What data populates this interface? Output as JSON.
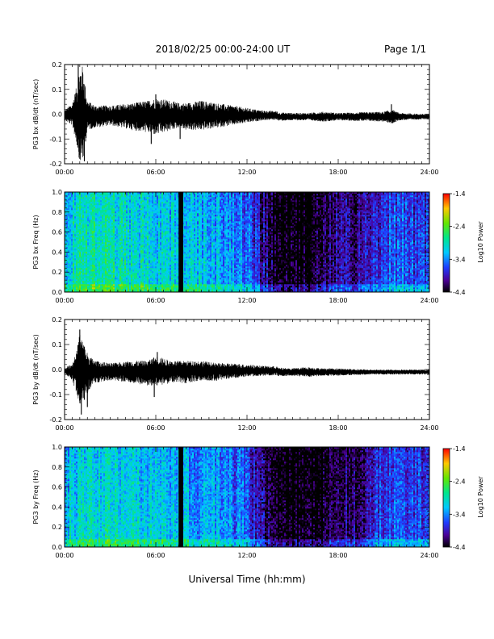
{
  "header": {
    "title": "2018/02/25  00:00-24:00 UT",
    "page": "Page 1/1"
  },
  "footer": {
    "xlabel": "Universal Time (hh:mm)"
  },
  "chart_data": [
    {
      "type": "line",
      "title": "",
      "ylabel": "PG3 bx dB/dt (nT/sec)",
      "xlabel": "",
      "x_ticks": [
        "00:00",
        "06:00",
        "12:00",
        "18:00",
        "24:00"
      ],
      "xlim": [
        0,
        24
      ],
      "ylim": [
        -0.2,
        0.2
      ],
      "y_ticks": [
        "0.2",
        "0.1",
        "0.0",
        "-0.1",
        "-0.2"
      ],
      "envelope": {
        "x_hours": [
          0,
          0.5,
          0.8,
          1.0,
          1.2,
          1.5,
          2.0,
          3.0,
          4.5,
          5.5,
          6.0,
          7.0,
          7.5,
          8.0,
          9.0,
          10.0,
          11.0,
          12.0,
          13.0,
          15.0,
          16.0,
          17.0,
          18.0,
          21.0,
          21.5,
          22.0,
          24.0
        ],
        "y_max": [
          0.02,
          0.05,
          0.12,
          0.2,
          0.2,
          0.06,
          0.04,
          0.04,
          0.05,
          0.06,
          0.07,
          0.06,
          0.05,
          0.05,
          0.06,
          0.05,
          0.04,
          0.03,
          0.02,
          0.015,
          0.015,
          0.02,
          0.015,
          0.02,
          0.03,
          0.015,
          0.01
        ],
        "y_min": [
          -0.02,
          -0.04,
          -0.12,
          -0.19,
          -0.19,
          -0.06,
          -0.05,
          -0.04,
          -0.06,
          -0.07,
          -0.08,
          -0.06,
          -0.05,
          -0.06,
          -0.06,
          -0.05,
          -0.04,
          -0.03,
          -0.02,
          -0.015,
          -0.015,
          -0.02,
          -0.015,
          -0.02,
          -0.03,
          -0.015,
          -0.01
        ]
      },
      "spikes": [
        {
          "x": 0.9,
          "y": 0.2
        },
        {
          "x": 1.0,
          "y": -0.18
        },
        {
          "x": 1.2,
          "y": 0.16
        },
        {
          "x": 1.3,
          "y": -0.19
        },
        {
          "x": 5.7,
          "y": -0.12
        },
        {
          "x": 6.0,
          "y": 0.08
        },
        {
          "x": 7.6,
          "y": -0.1
        },
        {
          "x": 21.5,
          "y": 0.04
        }
      ]
    },
    {
      "type": "heatmap",
      "title": "",
      "ylabel": "PG3 bx Freq (Hz)",
      "xlabel": "",
      "x_ticks": [
        "00:00",
        "06:00",
        "12:00",
        "18:00",
        "24:00"
      ],
      "xlim": [
        0,
        24
      ],
      "ylim": [
        0,
        1.0
      ],
      "y_ticks": [
        "1.0",
        "0.8",
        "0.6",
        "0.4",
        "0.2",
        "0.0"
      ],
      "colorbar": {
        "label": "Log10 Power",
        "min": -4.4,
        "max": -1.4,
        "ticks": [
          "-1.4",
          "-2.4",
          "-3.4",
          "-4.4"
        ]
      },
      "data_gap_hours": [
        7.5,
        7.8
      ],
      "quiet_band_hours": [
        13.0,
        17.0
      ],
      "column_log_power": {
        "x_hours": [
          0,
          2,
          4,
          6,
          8,
          10,
          12,
          13,
          14,
          15,
          16,
          17,
          18,
          19,
          20,
          21,
          22,
          23,
          24
        ],
        "level": [
          -3.0,
          -2.8,
          -2.9,
          -3.0,
          -3.1,
          -3.2,
          -3.4,
          -3.9,
          -4.3,
          -4.4,
          -4.4,
          -4.2,
          -3.9,
          -4.0,
          -3.8,
          -3.6,
          -3.5,
          -3.6,
          -3.7
        ]
      }
    },
    {
      "type": "line",
      "title": "",
      "ylabel": "PG3 by dB/dt (nT/sec)",
      "xlabel": "",
      "x_ticks": [
        "00:00",
        "06:00",
        "12:00",
        "18:00",
        "24:00"
      ],
      "xlim": [
        0,
        24
      ],
      "ylim": [
        -0.2,
        0.2
      ],
      "y_ticks": [
        "0.2",
        "0.1",
        "0.0",
        "-0.1",
        "-0.2"
      ],
      "envelope": {
        "x_hours": [
          0,
          0.5,
          0.8,
          1.0,
          1.3,
          1.6,
          2.0,
          3.0,
          4.5,
          5.5,
          6.0,
          7.0,
          8.0,
          9.0,
          10.0,
          11.0,
          12.0,
          13.0,
          15.0,
          16.0,
          17.0,
          18.0,
          20.0,
          22.0,
          24.0
        ],
        "y_max": [
          0.01,
          0.03,
          0.08,
          0.16,
          0.1,
          0.06,
          0.04,
          0.03,
          0.04,
          0.04,
          0.06,
          0.04,
          0.04,
          0.04,
          0.03,
          0.03,
          0.025,
          0.02,
          0.015,
          0.02,
          0.015,
          0.015,
          0.01,
          0.01,
          0.01
        ],
        "y_min": [
          -0.01,
          -0.04,
          -0.09,
          -0.14,
          -0.12,
          -0.08,
          -0.05,
          -0.04,
          -0.05,
          -0.06,
          -0.06,
          -0.05,
          -0.05,
          -0.04,
          -0.04,
          -0.03,
          -0.025,
          -0.02,
          -0.015,
          -0.02,
          -0.015,
          -0.015,
          -0.01,
          -0.01,
          -0.01
        ]
      },
      "spikes": [
        {
          "x": 1.0,
          "y": 0.16
        },
        {
          "x": 1.1,
          "y": -0.18
        },
        {
          "x": 1.3,
          "y": 0.09
        },
        {
          "x": 1.5,
          "y": -0.15
        },
        {
          "x": 5.9,
          "y": -0.11
        },
        {
          "x": 6.1,
          "y": 0.07
        }
      ]
    },
    {
      "type": "heatmap",
      "title": "",
      "ylabel": "PG3 by Freq (Hz)",
      "xlabel": "",
      "x_ticks": [
        "00:00",
        "06:00",
        "12:00",
        "18:00",
        "24:00"
      ],
      "xlim": [
        0,
        24
      ],
      "ylim": [
        0,
        1.0
      ],
      "y_ticks": [
        "1.0",
        "0.8",
        "0.6",
        "0.4",
        "0.2",
        "0.0"
      ],
      "colorbar": {
        "label": "Log10 Power",
        "min": -4.4,
        "max": -1.4,
        "ticks": [
          "-1.4",
          "-2.4",
          "-3.4",
          "-4.4"
        ]
      },
      "data_gap_hours": [
        7.5,
        7.8
      ],
      "quiet_band_hours": [
        13.0,
        17.5
      ],
      "column_log_power": {
        "x_hours": [
          0,
          2,
          4,
          6,
          8,
          10,
          12,
          13,
          14,
          15,
          16,
          17,
          18,
          19,
          20,
          21,
          22,
          23,
          24
        ],
        "level": [
          -3.1,
          -2.9,
          -3.0,
          -3.1,
          -3.2,
          -3.3,
          -3.5,
          -4.0,
          -4.3,
          -4.4,
          -4.4,
          -4.3,
          -4.0,
          -4.1,
          -3.9,
          -3.6,
          -3.5,
          -3.6,
          -3.7
        ]
      }
    }
  ]
}
